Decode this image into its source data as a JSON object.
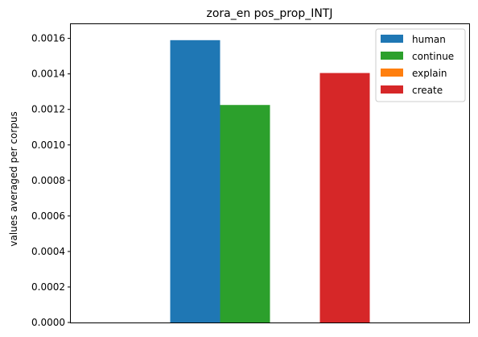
{
  "chart_data": {
    "type": "bar",
    "title": "zora_en pos_prop_INTJ",
    "xlabel": "",
    "ylabel": "values averaged per corpus",
    "ylim": [
      0,
      0.00168
    ],
    "yticks": [
      "0.0000",
      "0.0002",
      "0.0004",
      "0.0006",
      "0.0008",
      "0.0010",
      "0.0012",
      "0.0014",
      "0.0016"
    ],
    "grid": false,
    "legend_position": "top-right",
    "series": [
      {
        "name": "human",
        "value": 0.00159,
        "color": "#1f77b4"
      },
      {
        "name": "continue",
        "value": 0.001225,
        "color": "#2ca02c"
      },
      {
        "name": "explain",
        "value": 0.0,
        "color": "#ff7f0e"
      },
      {
        "name": "create",
        "value": 0.001405,
        "color": "#d62728"
      }
    ]
  }
}
